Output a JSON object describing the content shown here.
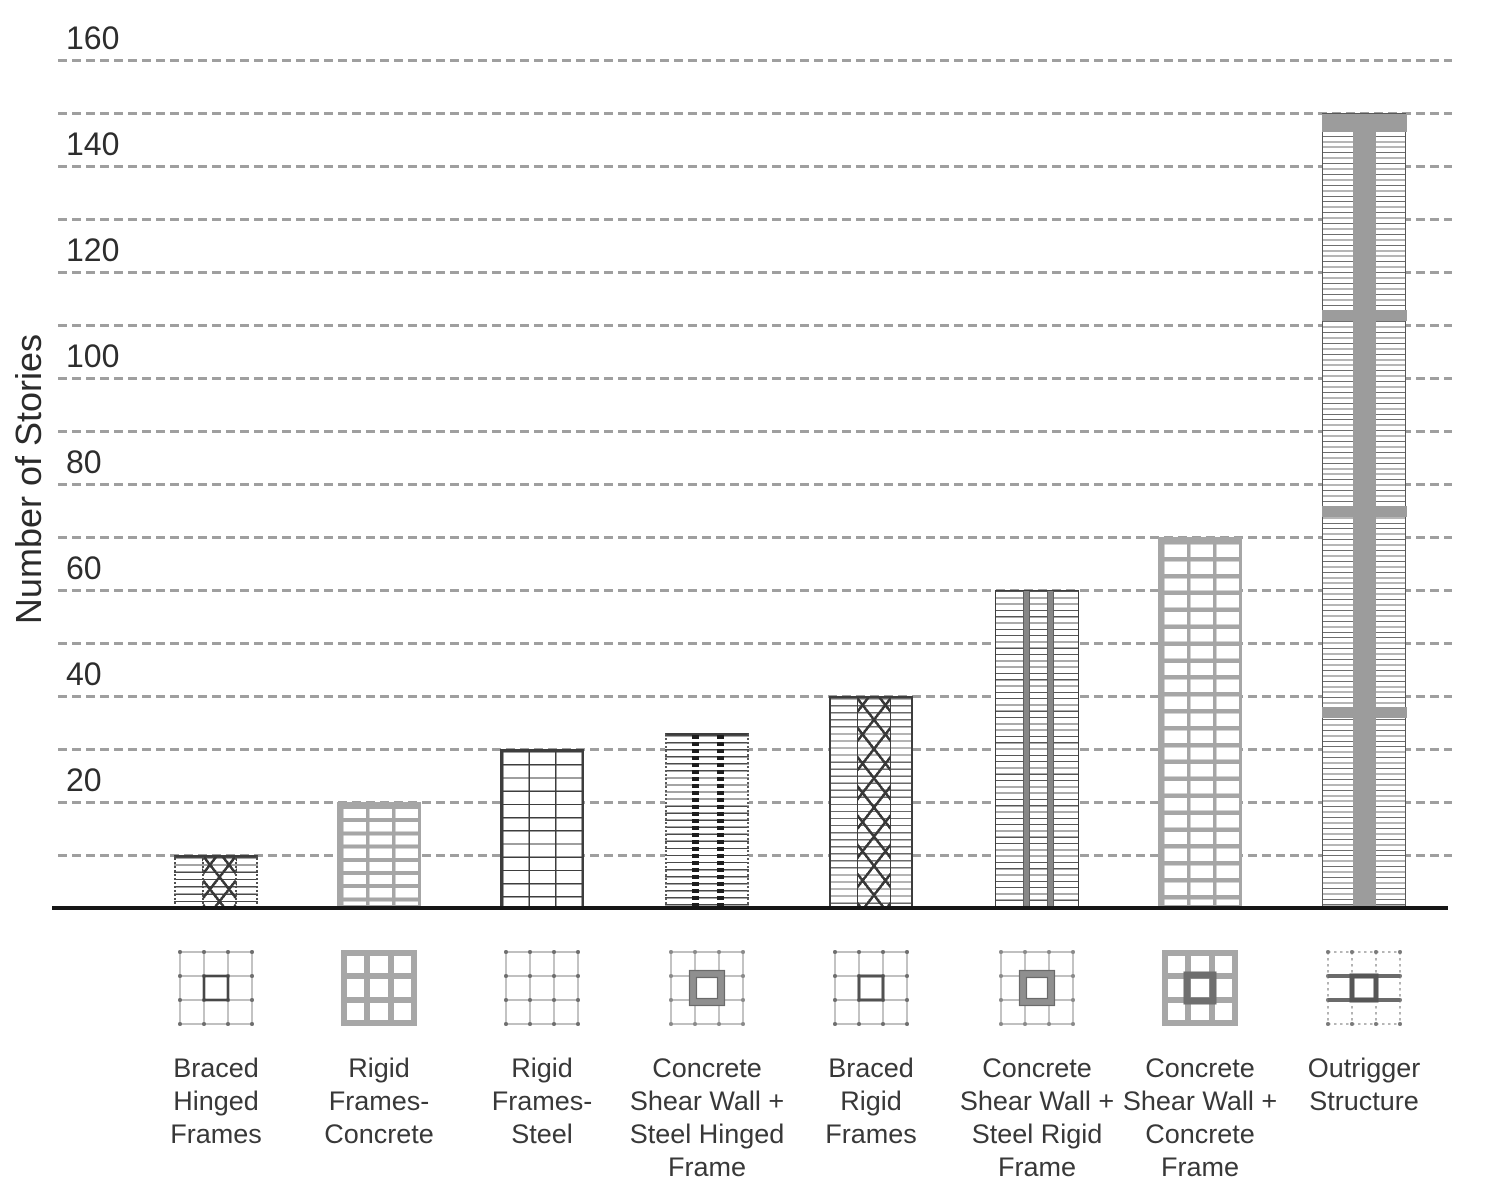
{
  "chart_data": {
    "type": "bar",
    "title": "",
    "ylabel": "Number of Stories",
    "xlabel": "",
    "ylim": [
      0,
      160
    ],
    "grid_step": 10,
    "grid_style": "dashed",
    "legend": "none",
    "yticks": [
      20,
      40,
      60,
      80,
      100,
      120,
      140,
      160
    ],
    "categories": [
      "Braced Hinged Frames",
      "Rigid Frames-Concrete",
      "Rigid Frames-Steel",
      "Concrete Shear Wall + Steel Hinged Frame",
      "Braced Rigid Frames",
      "Concrete Shear Wall + Steel Rigid Frame",
      "Concrete Shear Wall + Concrete Frame",
      "Outrigger Structure"
    ],
    "values": [
      10,
      20,
      30,
      33,
      40,
      60,
      70,
      150
    ],
    "bars": [
      {
        "label": "Braced\nHinged\nFrames",
        "stories": 10,
        "elevation_pattern": "braced-hinged",
        "plan_icon": "plan-core-braced-icon"
      },
      {
        "label": "Rigid\nFrames-\nConcrete",
        "stories": 20,
        "elevation_pattern": "concrete-frame",
        "plan_icon": "plan-concrete-grid-icon"
      },
      {
        "label": "Rigid\nFrames-\nSteel",
        "stories": 30,
        "elevation_pattern": "steel-frame",
        "plan_icon": "plan-steel-grid-icon"
      },
      {
        "label": "Concrete\nShear Wall +\nSteel Hinged\nFrame",
        "stories": 33,
        "elevation_pattern": "shearwall-hinged",
        "plan_icon": "plan-core-gray-icon"
      },
      {
        "label": "Braced\nRigid\nFrames",
        "stories": 40,
        "elevation_pattern": "braced-rigid",
        "plan_icon": "plan-core-dark-icon"
      },
      {
        "label": "Concrete\nShear Wall +\nSteel Rigid\nFrame",
        "stories": 60,
        "elevation_pattern": "shearwall-rigid",
        "plan_icon": "plan-core-gray-icon"
      },
      {
        "label": "Concrete\nShear Wall +\nConcrete\nFrame",
        "stories": 70,
        "elevation_pattern": "concrete-frame-tall",
        "plan_icon": "plan-concrete-core-icon"
      },
      {
        "label": "Outrigger\nStructure",
        "stories": 150,
        "elevation_pattern": "outrigger",
        "plan_icon": "plan-outrigger-icon",
        "outrigger_band_levels": [
          150,
          112,
          75,
          37
        ]
      }
    ]
  },
  "colors": {
    "concrete_gray": "#a6a6a6",
    "core_gray": "#9c9c9c",
    "line_dark": "#3d3d3d",
    "grid_gray": "#9f9f9f",
    "text": "#383838",
    "background": "#ffffff"
  }
}
